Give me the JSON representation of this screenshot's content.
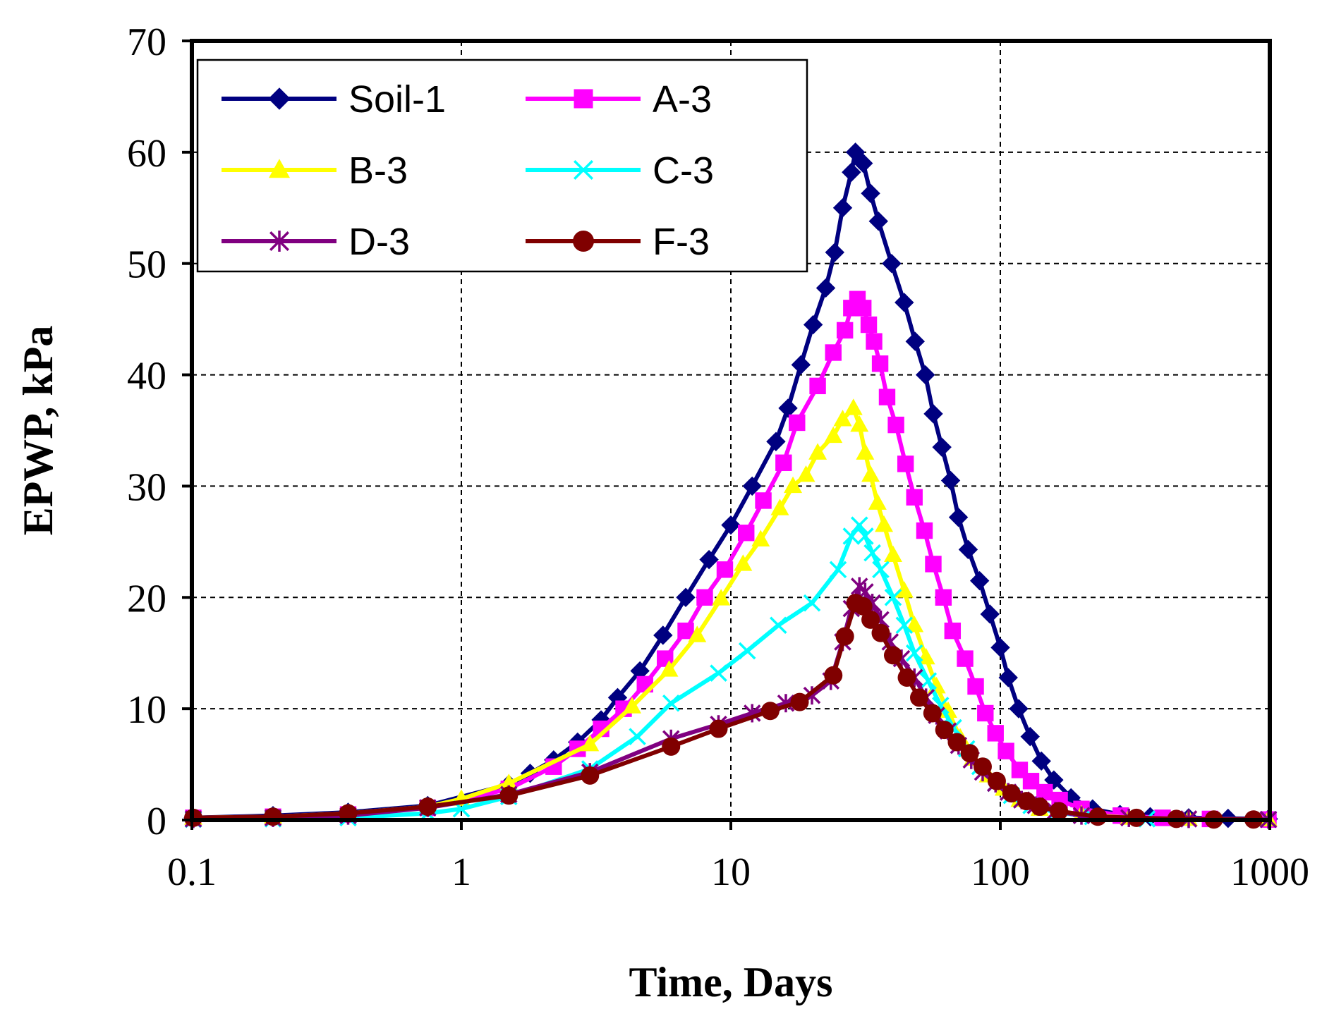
{
  "chart_data": {
    "type": "line",
    "title": "",
    "xlabel": "Time, Days",
    "ylabel": "EPWP, kPa",
    "xscale": "log",
    "xlim": [
      0.1,
      1000
    ],
    "ylim": [
      0,
      70
    ],
    "xticks": [
      0.1,
      1,
      10,
      100,
      1000
    ],
    "xtick_labels": [
      "0.1",
      "1",
      "10",
      "100",
      "1000"
    ],
    "yticks": [
      0,
      10,
      20,
      30,
      40,
      50,
      60,
      70
    ],
    "ytick_labels": [
      "0",
      "10",
      "20",
      "30",
      "40",
      "50",
      "60",
      "70"
    ],
    "grid": true,
    "legend_position": "top-left",
    "series": [
      {
        "name": "Soil-1",
        "color": "#000080",
        "marker": "diamond",
        "points": [
          [
            0.1,
            0.2
          ],
          [
            0.2,
            0.4
          ],
          [
            0.38,
            0.7
          ],
          [
            0.75,
            1.3
          ],
          [
            1.5,
            3.2
          ],
          [
            1.8,
            4.2
          ],
          [
            2.2,
            5.4
          ],
          [
            2.7,
            7
          ],
          [
            3.3,
            9
          ],
          [
            3.8,
            11
          ],
          [
            4.6,
            13.4
          ],
          [
            5.6,
            16.6
          ],
          [
            6.8,
            20
          ],
          [
            8.3,
            23.4
          ],
          [
            10,
            26.5
          ],
          [
            12,
            30
          ],
          [
            14.7,
            34
          ],
          [
            16.3,
            37
          ],
          [
            18.2,
            40.9
          ],
          [
            20.2,
            44.5
          ],
          [
            22.5,
            47.8
          ],
          [
            24.3,
            51
          ],
          [
            26,
            55
          ],
          [
            28,
            58.2
          ],
          [
            29,
            60
          ],
          [
            31,
            59
          ],
          [
            33,
            56.3
          ],
          [
            35.3,
            53.8
          ],
          [
            39.5,
            50
          ],
          [
            44,
            46.5
          ],
          [
            48.3,
            43
          ],
          [
            52.7,
            40
          ],
          [
            56.4,
            36.5
          ],
          [
            60.7,
            33.5
          ],
          [
            65.4,
            30.5
          ],
          [
            69.9,
            27.2
          ],
          [
            76,
            24.3
          ],
          [
            83.8,
            21.5
          ],
          [
            91.5,
            18.5
          ],
          [
            100,
            15.5
          ],
          [
            107,
            12.8
          ],
          [
            117,
            10
          ],
          [
            129,
            7.5
          ],
          [
            142,
            5.3
          ],
          [
            158,
            3.6
          ],
          [
            183,
            2
          ],
          [
            220,
            1
          ],
          [
            278,
            0.5
          ],
          [
            360,
            0.3
          ],
          [
            500,
            0.2
          ],
          [
            700,
            0.15
          ],
          [
            1000,
            0.1
          ]
        ]
      },
      {
        "name": "A-3",
        "color": "#ff00ff",
        "marker": "square",
        "points": [
          [
            0.1,
            0.2
          ],
          [
            0.2,
            0.3
          ],
          [
            0.38,
            0.5
          ],
          [
            0.75,
            1.1
          ],
          [
            1.5,
            2.8
          ],
          [
            2.2,
            4.8
          ],
          [
            2.7,
            6.4
          ],
          [
            3.3,
            8.2
          ],
          [
            4,
            10
          ],
          [
            4.8,
            12.2
          ],
          [
            5.7,
            14.5
          ],
          [
            6.8,
            17
          ],
          [
            8,
            20
          ],
          [
            9.5,
            22.5
          ],
          [
            11.4,
            25.8
          ],
          [
            13.2,
            28.7
          ],
          [
            15.7,
            32.1
          ],
          [
            17.6,
            35.7
          ],
          [
            21,
            39
          ],
          [
            24,
            42
          ],
          [
            26.5,
            44
          ],
          [
            28,
            46
          ],
          [
            29.5,
            46.8
          ],
          [
            31,
            46
          ],
          [
            32.5,
            44.5
          ],
          [
            34,
            43
          ],
          [
            35.8,
            41
          ],
          [
            38,
            38
          ],
          [
            41,
            35.5
          ],
          [
            44.5,
            32
          ],
          [
            48,
            29
          ],
          [
            52.3,
            26
          ],
          [
            56.4,
            23
          ],
          [
            61.5,
            20
          ],
          [
            66.5,
            17
          ],
          [
            74,
            14.5
          ],
          [
            81,
            12
          ],
          [
            88,
            9.6
          ],
          [
            96,
            7.8
          ],
          [
            105,
            6.2
          ],
          [
            118,
            4.5
          ],
          [
            130,
            3.5
          ],
          [
            146,
            2.5
          ],
          [
            166,
            1.8
          ],
          [
            200,
            1
          ],
          [
            280,
            0.4
          ],
          [
            400,
            0.2
          ],
          [
            600,
            0.1
          ],
          [
            1000,
            0.05
          ]
        ]
      },
      {
        "name": "B-3",
        "color": "#ffff00",
        "marker": "triangle",
        "points": [
          [
            0.1,
            0.2
          ],
          [
            0.2,
            0.3
          ],
          [
            0.38,
            0.6
          ],
          [
            0.75,
            1.2
          ],
          [
            1,
            1.9
          ],
          [
            1.5,
            3.3
          ],
          [
            3,
            6.8
          ],
          [
            4.3,
            10.2
          ],
          [
            5.9,
            13.5
          ],
          [
            7.5,
            16.6
          ],
          [
            9.2,
            19.9
          ],
          [
            11.1,
            23
          ],
          [
            12.9,
            25.2
          ],
          [
            15.2,
            28
          ],
          [
            17,
            30
          ],
          [
            19,
            31
          ],
          [
            21,
            33
          ],
          [
            24,
            34.5
          ],
          [
            26,
            36
          ],
          [
            28.5,
            37
          ],
          [
            30,
            35.5
          ],
          [
            31.5,
            33
          ],
          [
            33,
            31
          ],
          [
            35,
            28.5
          ],
          [
            37,
            26.5
          ],
          [
            40,
            23.8
          ],
          [
            44,
            20.6
          ],
          [
            48,
            17.5
          ],
          [
            53,
            14.6
          ],
          [
            58,
            12
          ],
          [
            64,
            9.8
          ],
          [
            71,
            7.4
          ],
          [
            79,
            5.5
          ],
          [
            90,
            4
          ],
          [
            103,
            2.8
          ],
          [
            118,
            1.8
          ],
          [
            140,
            1
          ],
          [
            200,
            0.5
          ],
          [
            300,
            0.2
          ],
          [
            500,
            0.1
          ],
          [
            1000,
            0.05
          ]
        ]
      },
      {
        "name": "C-3",
        "color": "#00ffff",
        "marker": "x",
        "points": [
          [
            0.1,
            0.05
          ],
          [
            0.2,
            0.1
          ],
          [
            0.38,
            0.2
          ],
          [
            0.75,
            0.6
          ],
          [
            1,
            1
          ],
          [
            1.5,
            2.1
          ],
          [
            3,
            4.6
          ],
          [
            4.5,
            7.5
          ],
          [
            6,
            10.5
          ],
          [
            9,
            13.2
          ],
          [
            11.5,
            15.2
          ],
          [
            15,
            17.5
          ],
          [
            20,
            19.5
          ],
          [
            25,
            22.5
          ],
          [
            28,
            25.5
          ],
          [
            30,
            26.5
          ],
          [
            31.5,
            25.5
          ],
          [
            33.5,
            24
          ],
          [
            36,
            22.5
          ],
          [
            40,
            20
          ],
          [
            44,
            17.5
          ],
          [
            48,
            15
          ],
          [
            54,
            12.5
          ],
          [
            60,
            10.3
          ],
          [
            67,
            8.3
          ],
          [
            75,
            6.4
          ],
          [
            84,
            4.8
          ],
          [
            96,
            3.3
          ],
          [
            110,
            2.2
          ],
          [
            130,
            1.3
          ],
          [
            160,
            0.7
          ],
          [
            220,
            0.3
          ],
          [
            350,
            0.1
          ],
          [
            1000,
            0.05
          ]
        ]
      },
      {
        "name": "D-3",
        "color": "#800080",
        "marker": "asterisk",
        "points": [
          [
            0.1,
            0.1
          ],
          [
            0.2,
            0.2
          ],
          [
            0.38,
            0.4
          ],
          [
            0.75,
            1.1
          ],
          [
            1.5,
            2.3
          ],
          [
            3,
            4.3
          ],
          [
            6,
            7.3
          ],
          [
            9,
            8.6
          ],
          [
            12,
            9.6
          ],
          [
            16,
            10.5
          ],
          [
            20,
            11.2
          ],
          [
            23.5,
            12.5
          ],
          [
            26,
            16
          ],
          [
            28,
            19
          ],
          [
            30,
            21
          ],
          [
            31.5,
            20.5
          ],
          [
            33.5,
            19.5
          ],
          [
            36,
            18
          ],
          [
            39,
            16
          ],
          [
            43,
            14.5
          ],
          [
            48,
            12.8
          ],
          [
            53,
            11
          ],
          [
            58,
            9.4
          ],
          [
            64,
            8
          ],
          [
            70,
            6.7
          ],
          [
            78,
            5.4
          ],
          [
            86,
            4.3
          ],
          [
            96,
            3.3
          ],
          [
            107,
            2.5
          ],
          [
            120,
            1.8
          ],
          [
            135,
            1.3
          ],
          [
            160,
            0.8
          ],
          [
            200,
            0.4
          ],
          [
            300,
            0.2
          ],
          [
            500,
            0.1
          ],
          [
            1000,
            0.05
          ]
        ]
      },
      {
        "name": "F-3",
        "color": "#800000",
        "marker": "circle",
        "points": [
          [
            0.1,
            0.2
          ],
          [
            0.2,
            0.3
          ],
          [
            0.38,
            0.6
          ],
          [
            0.75,
            1.2
          ],
          [
            1.5,
            2.2
          ],
          [
            3,
            4
          ],
          [
            6,
            6.6
          ],
          [
            9,
            8.2
          ],
          [
            14,
            9.8
          ],
          [
            18,
            10.6
          ],
          [
            24,
            13
          ],
          [
            26.5,
            16.5
          ],
          [
            29,
            19.5
          ],
          [
            31,
            19.2
          ],
          [
            33,
            18
          ],
          [
            36,
            16.8
          ],
          [
            40,
            14.8
          ],
          [
            45,
            12.8
          ],
          [
            50,
            11
          ],
          [
            56,
            9.6
          ],
          [
            62,
            8.1
          ],
          [
            69,
            7
          ],
          [
            77,
            6
          ],
          [
            86,
            4.8
          ],
          [
            97,
            3.5
          ],
          [
            110,
            2.4
          ],
          [
            125,
            1.7
          ],
          [
            140,
            1.2
          ],
          [
            165,
            0.8
          ],
          [
            230,
            0.3
          ],
          [
            320,
            0.2
          ],
          [
            450,
            0.1
          ],
          [
            620,
            0.05
          ],
          [
            870,
            0.05
          ]
        ]
      }
    ]
  }
}
